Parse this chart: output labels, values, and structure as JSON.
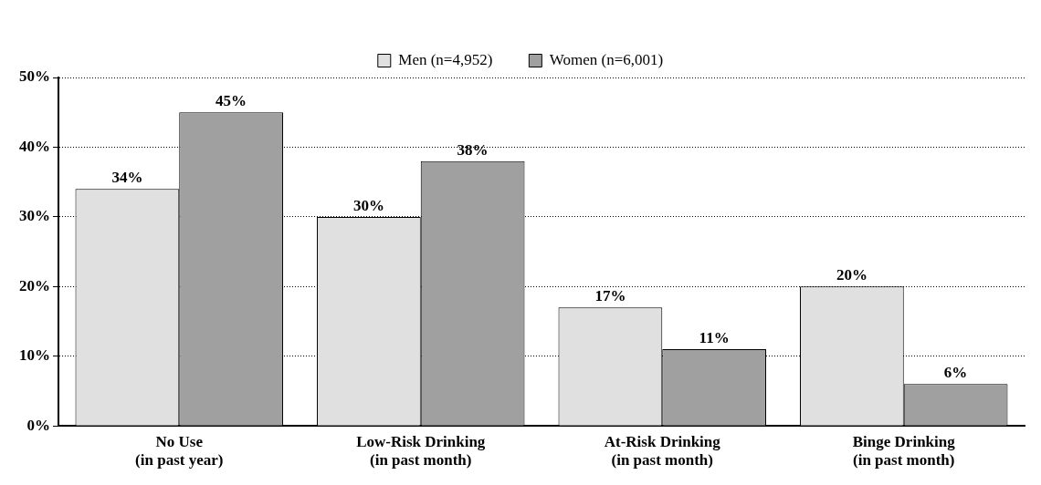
{
  "chart_data": {
    "type": "bar",
    "categories": [
      "No Use\n(in past year)",
      "Low-Risk Drinking\n(in past month)",
      "At-Risk Drinking\n(in past month)",
      "Binge Drinking\n(in past month)"
    ],
    "series": [
      {
        "name": "Men (n=4,952)",
        "color": "#e0e0e0",
        "values": [
          34,
          30,
          17,
          20
        ],
        "value_labels": [
          "34%",
          "30%",
          "17%",
          "20%"
        ]
      },
      {
        "name": "Women (n=6,001)",
        "color": "#a0a0a0",
        "values": [
          45,
          38,
          11,
          6
        ],
        "value_labels": [
          "45%",
          "38%",
          "11%",
          "6%"
        ]
      }
    ],
    "ylim": [
      0,
      50
    ],
    "yticks": [
      {
        "value": 0,
        "label": "0%"
      },
      {
        "value": 10,
        "label": "10%"
      },
      {
        "value": 20,
        "label": "20%"
      },
      {
        "value": 30,
        "label": "30%"
      },
      {
        "value": 40,
        "label": "40%"
      },
      {
        "value": 50,
        "label": "50%"
      }
    ],
    "grid": "y",
    "legend": "top"
  }
}
